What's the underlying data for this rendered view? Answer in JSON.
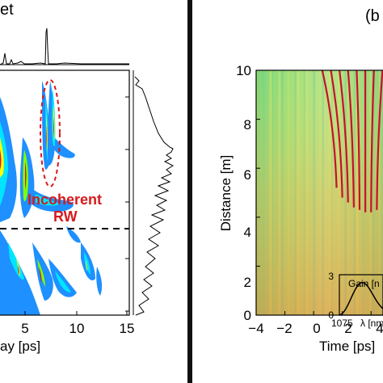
{
  "left_panel": {
    "title_fragment": "et",
    "annotation": {
      "line1": "Incoherent",
      "line2": "RW",
      "color": "#d7191c"
    },
    "x_label_fragment": "ay [ps]",
    "x_ticks": [
      "5",
      "10",
      "15"
    ]
  },
  "right_panel": {
    "panel_tag_fragment": "(b",
    "ylabel": "Distance [m]",
    "xlabel_fragment": "Time [ps]",
    "y_ticks": [
      "0",
      "2",
      "4",
      "6",
      "8",
      "10"
    ],
    "x_ticks": [
      "−4",
      "−2",
      "0",
      "2",
      "4"
    ],
    "inset": {
      "ylabel_fragment": "Gain [n",
      "xlabel_fragment": "λ [nm",
      "y_ticks": [
        "0",
        "3"
      ],
      "x_ticks": [
        "1075"
      ]
    }
  },
  "chart_data": [
    {
      "type": "heatmap",
      "panel": "left",
      "title": "",
      "xlabel": "ay [ps]",
      "ylabel": "",
      "x_ticks_visible": [
        5,
        10,
        15
      ],
      "annotation": "Incoherent RW",
      "colormap": [
        "#00008b",
        "#1e90ff",
        "#00e5ff",
        "#7fff00",
        "#ffff00",
        "#ff7f00",
        "#d7191c"
      ],
      "marginals": [
        "top intensity profile",
        "right intensity profile"
      ],
      "dashed_reference_line": true
    },
    {
      "type": "heatmap",
      "panel": "right",
      "xlabel": "Time [ps]",
      "ylabel": "Distance [m]",
      "xlim": [
        -4,
        5
      ],
      "ylim": [
        0,
        10
      ],
      "x_ticks": [
        -4,
        -2,
        0,
        2,
        4
      ],
      "y_ticks": [
        0,
        2,
        4,
        6,
        8,
        10
      ],
      "trajectories": [
        {
          "x0": 1.6,
          "z0": 5.2,
          "x1": 0.6,
          "z1": 10
        },
        {
          "x0": 2.0,
          "z0": 4.8,
          "x1": 1.2,
          "z1": 10
        },
        {
          "x0": 2.4,
          "z0": 4.6,
          "x1": 1.8,
          "z1": 10
        },
        {
          "x0": 2.8,
          "z0": 4.4,
          "x1": 2.4,
          "z1": 10
        },
        {
          "x0": 3.2,
          "z0": 4.3,
          "x1": 3.0,
          "z1": 10
        },
        {
          "x0": 3.6,
          "z0": 4.2,
          "x1": 3.6,
          "z1": 10
        },
        {
          "x0": 4.0,
          "z0": 4.2,
          "x1": 4.2,
          "z1": 10
        },
        {
          "x0": 4.4,
          "z0": 4.3,
          "x1": 4.8,
          "z1": 10
        }
      ],
      "inset": {
        "xlabel": "λ [nm",
        "ylabel": "Gain [n",
        "ylim": [
          0,
          3
        ],
        "x_ticks": [
          1075
        ]
      }
    }
  ]
}
